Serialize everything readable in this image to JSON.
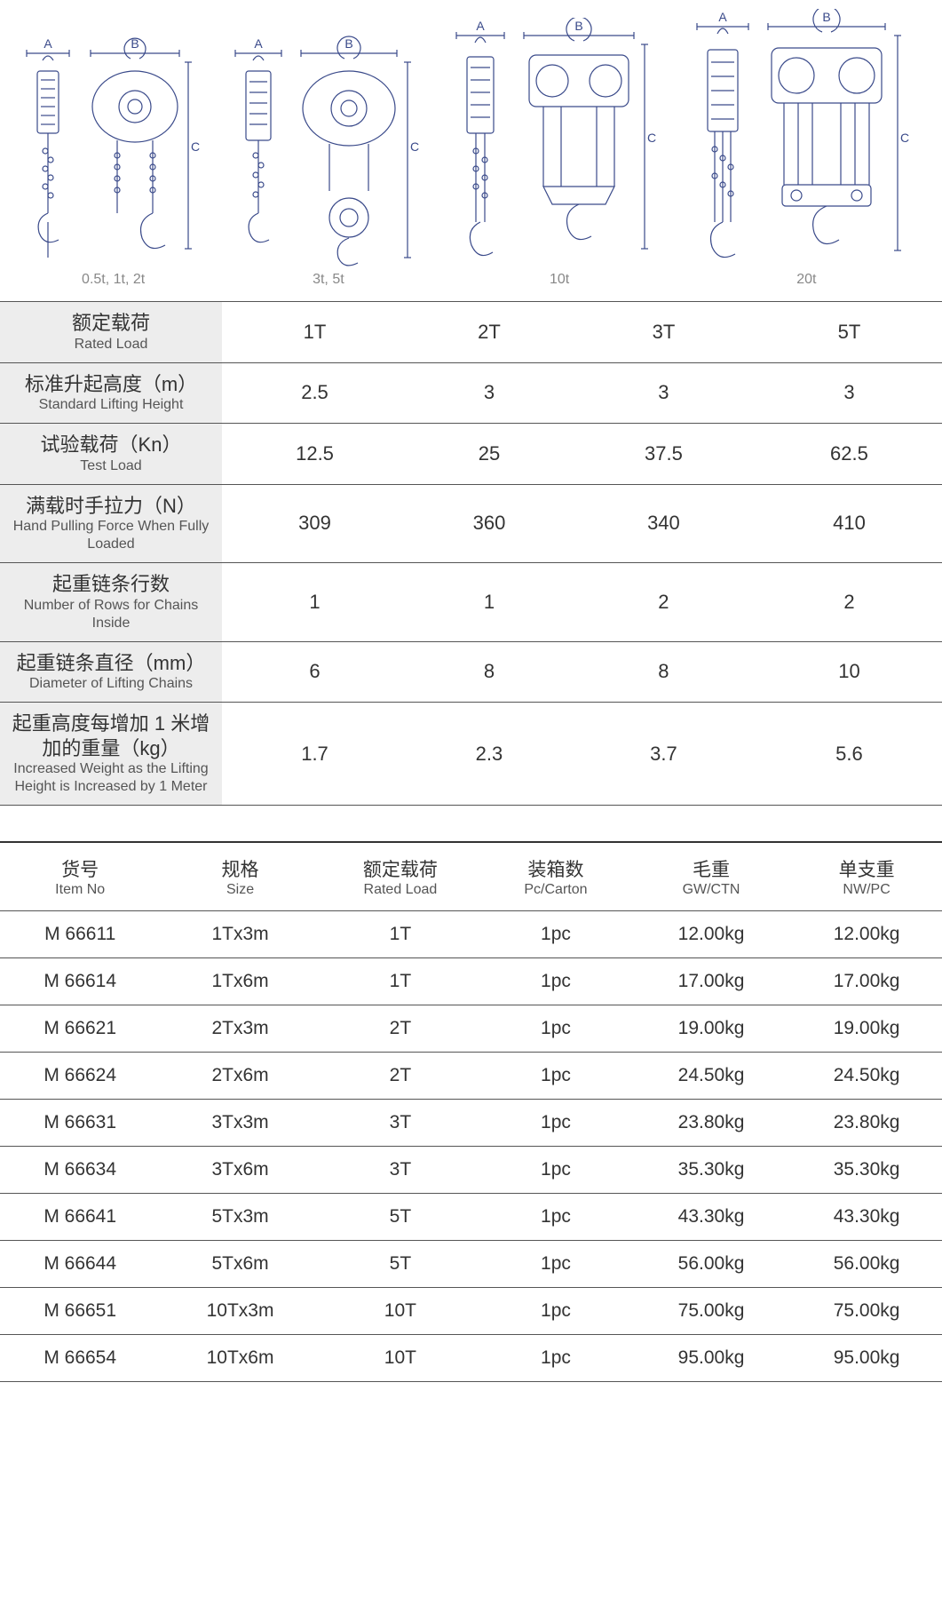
{
  "colors": {
    "bg": "#ffffff",
    "text": "#333333",
    "subtext": "#555555",
    "caption": "#888888",
    "label_bg": "#ededed",
    "rule": "#555555",
    "rule_heavy": "#333333",
    "diagram_stroke": "#3a4a8a"
  },
  "diagrams": {
    "captions": [
      "0.5t, 1t, 2t",
      "3t, 5t",
      "10t",
      "20t"
    ],
    "dim_labels": {
      "A": "A",
      "B": "B",
      "C": "C"
    }
  },
  "spec_table": {
    "rows": [
      {
        "cn": "额定载荷",
        "en": "Rated Load",
        "vals": [
          "1T",
          "2T",
          "3T",
          "5T"
        ]
      },
      {
        "cn": "标准升起高度（m）",
        "en": "Standard Lifting Height",
        "vals": [
          "2.5",
          "3",
          "3",
          "3"
        ]
      },
      {
        "cn": "试验载荷（Kn）",
        "en": "Test Load",
        "vals": [
          "12.5",
          "25",
          "37.5",
          "62.5"
        ]
      },
      {
        "cn": "满载时手拉力（N）",
        "en": "Hand Pulling Force When Fully Loaded",
        "vals": [
          "309",
          "360",
          "340",
          "410"
        ]
      },
      {
        "cn": "起重链条行数",
        "en": "Number of Rows for Chains Inside",
        "vals": [
          "1",
          "1",
          "2",
          "2"
        ]
      },
      {
        "cn": "起重链条直径（mm）",
        "en": "Diameter of Lifting Chains",
        "vals": [
          "6",
          "8",
          "8",
          "10"
        ]
      },
      {
        "cn": "起重高度每增加 1 米增加的重量（kg）",
        "en": "Increased Weight as the Lifting Height is Increased by 1 Meter",
        "vals": [
          "1.7",
          "2.3",
          "3.7",
          "5.6"
        ]
      }
    ]
  },
  "prod_table": {
    "headers": [
      {
        "cn": "货号",
        "en": "Item No"
      },
      {
        "cn": "规格",
        "en": "Size"
      },
      {
        "cn": "额定载荷",
        "en": "Rated Load"
      },
      {
        "cn": "装箱数",
        "en": "Pc/Carton"
      },
      {
        "cn": "毛重",
        "en": "GW/CTN"
      },
      {
        "cn": "单支重",
        "en": "NW/PC"
      }
    ],
    "rows": [
      [
        "M 66611",
        "1Tx3m",
        "1T",
        "1pc",
        "12.00kg",
        "12.00kg"
      ],
      [
        "M 66614",
        "1Tx6m",
        "1T",
        "1pc",
        "17.00kg",
        "17.00kg"
      ],
      [
        "M 66621",
        "2Tx3m",
        "2T",
        "1pc",
        "19.00kg",
        "19.00kg"
      ],
      [
        "M 66624",
        "2Tx6m",
        "2T",
        "1pc",
        "24.50kg",
        "24.50kg"
      ],
      [
        "M 66631",
        "3Tx3m",
        "3T",
        "1pc",
        "23.80kg",
        "23.80kg"
      ],
      [
        "M 66634",
        "3Tx6m",
        "3T",
        "1pc",
        "35.30kg",
        "35.30kg"
      ],
      [
        "M 66641",
        "5Tx3m",
        "5T",
        "1pc",
        "43.30kg",
        "43.30kg"
      ],
      [
        "M 66644",
        "5Tx6m",
        "5T",
        "1pc",
        "56.00kg",
        "56.00kg"
      ],
      [
        "M 66651",
        "10Tx3m",
        "10T",
        "1pc",
        "75.00kg",
        "75.00kg"
      ],
      [
        "M 66654",
        "10Tx6m",
        "10T",
        "1pc",
        "95.00kg",
        "95.00kg"
      ]
    ]
  }
}
